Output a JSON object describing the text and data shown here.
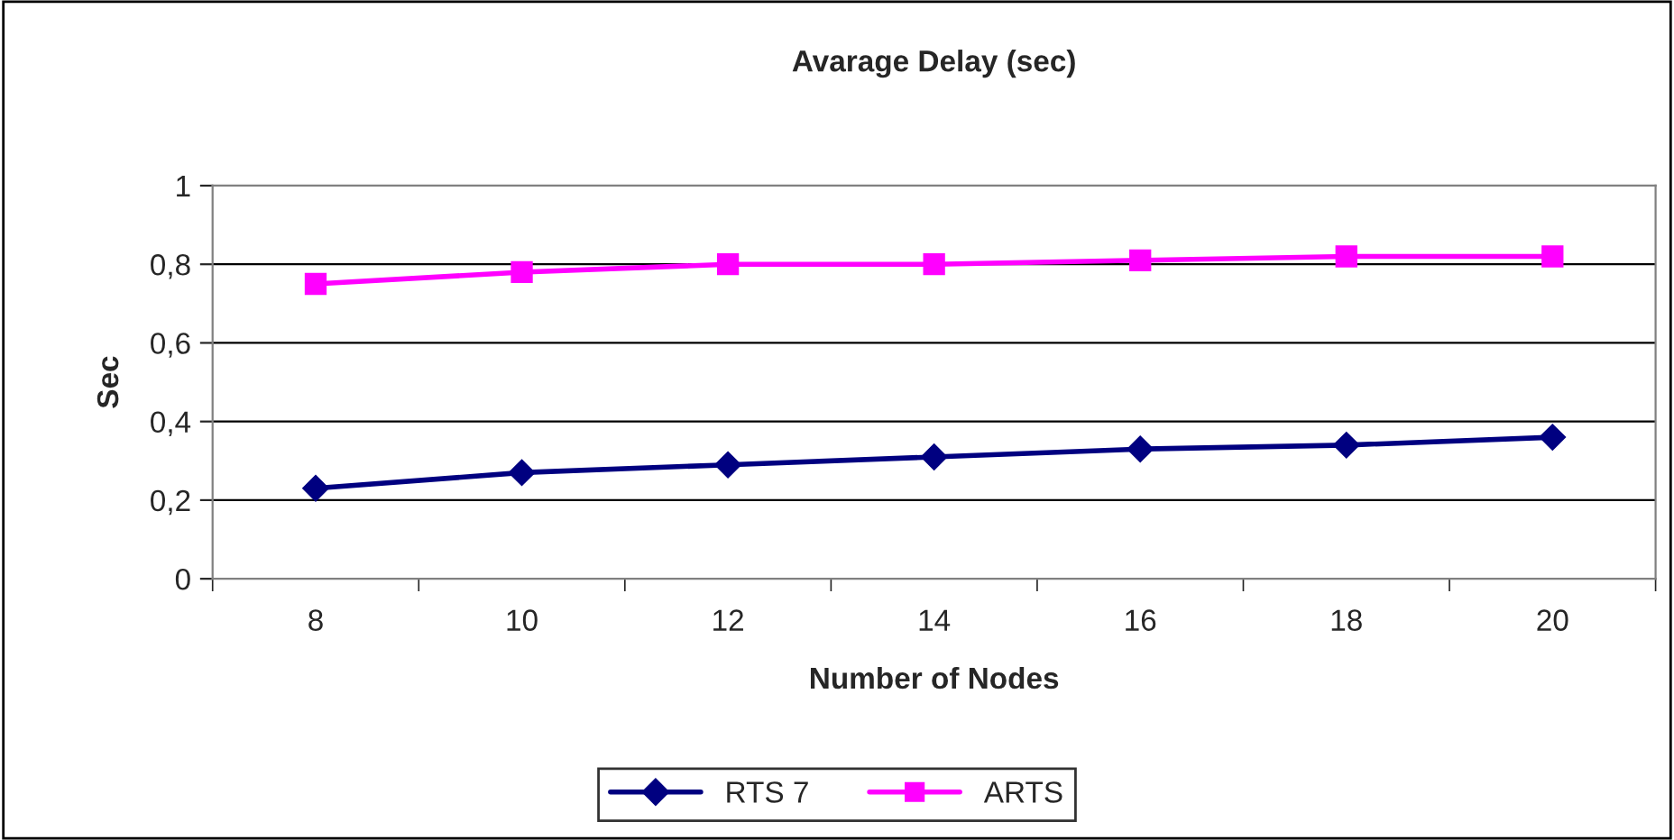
{
  "chart_data": {
    "type": "line",
    "title": "Avarage Delay (sec)",
    "xlabel": "Number of Nodes",
    "ylabel": "Sec",
    "categories": [
      "8",
      "10",
      "12",
      "14",
      "16",
      "18",
      "20"
    ],
    "series": [
      {
        "name": "RTS 7",
        "color": "#000080",
        "marker": "diamond",
        "values": [
          0.23,
          0.27,
          0.29,
          0.31,
          0.33,
          0.34,
          0.36
        ]
      },
      {
        "name": "ARTS",
        "color": "#ff00ff",
        "marker": "square",
        "values": [
          0.75,
          0.78,
          0.8,
          0.8,
          0.81,
          0.82,
          0.82
        ]
      }
    ],
    "ylim": [
      0,
      1
    ],
    "yticks": [
      0,
      {
        "value": 0.2,
        "label": "0,2"
      },
      {
        "value": 0.4,
        "label": "0,4"
      },
      {
        "value": 0.6,
        "label": "0,6"
      },
      {
        "value": 0.8,
        "label": "0,8"
      },
      1
    ],
    "grid": "y",
    "legend": "bottom",
    "line_style": "solid"
  }
}
